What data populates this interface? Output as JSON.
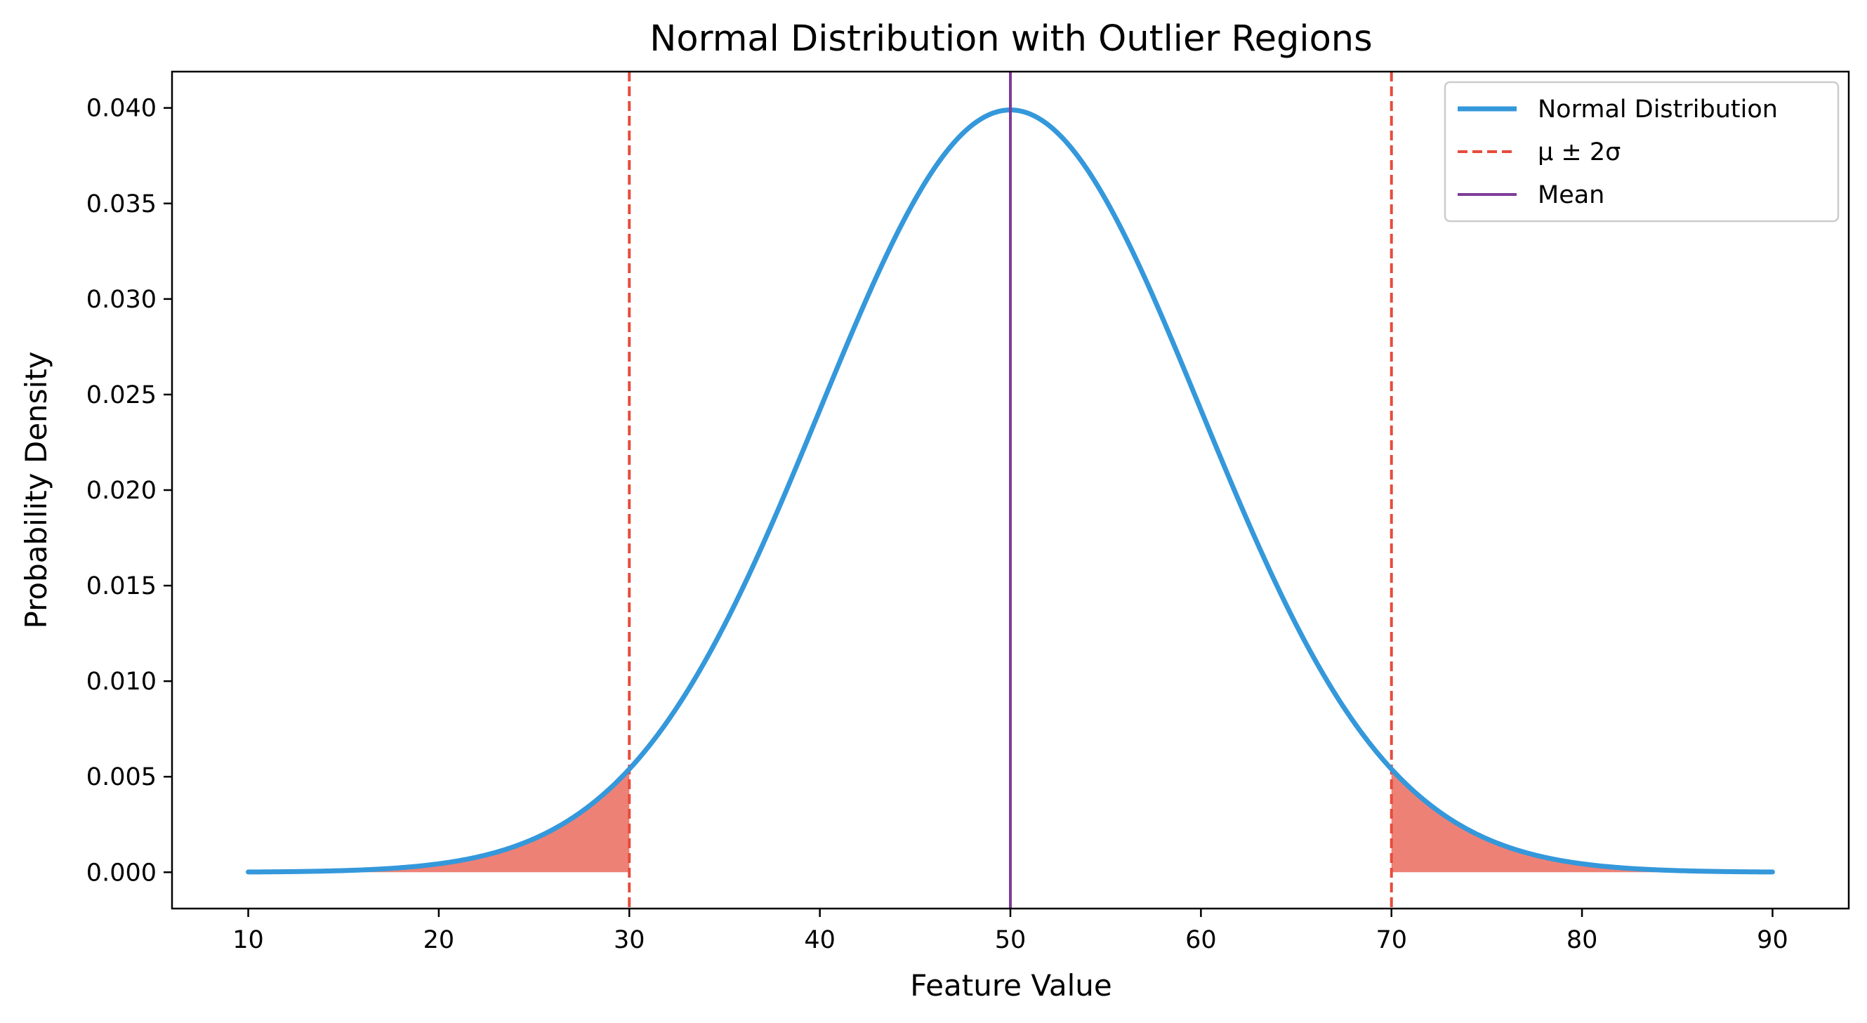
{
  "chart_data": {
    "type": "line",
    "title": "Normal Distribution with Outlier Regions",
    "xlabel": "Feature Value",
    "ylabel": "Probability Density",
    "xlim": [
      6,
      94
    ],
    "ylim": [
      -0.0019,
      0.0419
    ],
    "grid": false,
    "legend_position": "top-right",
    "x_ticks": [
      10,
      20,
      30,
      40,
      50,
      60,
      70,
      80,
      90
    ],
    "x_tick_labels": [
      "10",
      "20",
      "30",
      "40",
      "50",
      "60",
      "70",
      "80",
      "90"
    ],
    "y_ticks": [
      0.0,
      0.005,
      0.01,
      0.015,
      0.02,
      0.025,
      0.03,
      0.035,
      0.04
    ],
    "y_tick_labels": [
      "0.000",
      "0.005",
      "0.010",
      "0.015",
      "0.020",
      "0.025",
      "0.030",
      "0.035",
      "0.040"
    ],
    "distribution": {
      "mean": 50,
      "std": 10,
      "x_min": 10,
      "x_max": 90
    },
    "series": [
      {
        "name": "Normal Distribution",
        "kind": "curve",
        "color": "#3498db"
      },
      {
        "name": "μ ± 2σ",
        "kind": "vline-dashed",
        "x": [
          30,
          70
        ],
        "color": "#e74c3c"
      },
      {
        "name": "Mean",
        "kind": "vline",
        "x": [
          50
        ],
        "color": "#7d3c98"
      }
    ],
    "shaded_regions": [
      {
        "x_from": 10,
        "x_to": 30,
        "color": "#e74c3c",
        "opacity": 0.7
      },
      {
        "x_from": 70,
        "x_to": 90,
        "color": "#e74c3c",
        "opacity": 0.7
      }
    ]
  }
}
